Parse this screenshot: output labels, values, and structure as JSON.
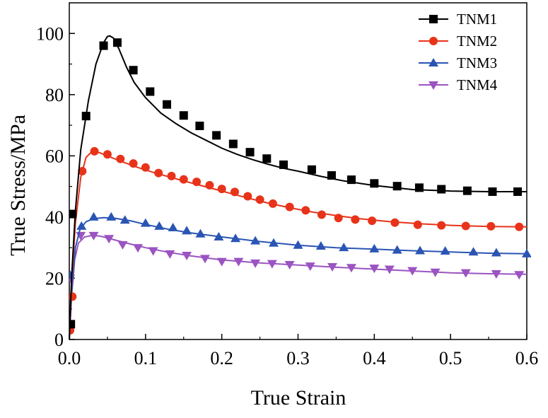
{
  "chart_data": {
    "type": "line",
    "title": "",
    "xlabel": "True Strain",
    "ylabel": "True Stress/MPa",
    "xlim": [
      0,
      0.6
    ],
    "ylim": [
      0,
      110
    ],
    "xticks": [
      0.0,
      0.1,
      0.2,
      0.3,
      0.4,
      0.5,
      0.6
    ],
    "xtick_labels": [
      "0.0",
      "0.1",
      "0.2",
      "0.3",
      "0.4",
      "0.5",
      "0.6"
    ],
    "yticks": [
      0,
      20,
      40,
      60,
      80,
      100
    ],
    "ytick_labels": [
      "0",
      "20",
      "40",
      "60",
      "80",
      "100"
    ],
    "grid": false,
    "legend_position": "top-right",
    "series": [
      {
        "name": "TNM1",
        "color": "#000000",
        "marker": "square",
        "x": [
          0,
          0.003,
          0.008,
          0.015,
          0.025,
          0.035,
          0.045,
          0.05,
          0.053,
          0.058,
          0.065,
          0.075,
          0.085,
          0.1,
          0.12,
          0.14,
          0.16,
          0.18,
          0.2,
          0.22,
          0.24,
          0.26,
          0.28,
          0.3,
          0.33,
          0.36,
          0.4,
          0.45,
          0.5,
          0.55,
          0.6
        ],
        "y": [
          0,
          20,
          42,
          62,
          78,
          90,
          97,
          99,
          99.2,
          98.5,
          95,
          89,
          84,
          79,
          74,
          70.5,
          67.5,
          65,
          62.5,
          60.5,
          58.8,
          57.3,
          56,
          55,
          53.3,
          51.8,
          50.3,
          49,
          48.5,
          48.3,
          48.3
        ],
        "marker_x": [
          0.002,
          0.004,
          0.022,
          0.045,
          0.063,
          0.084,
          0.106,
          0.128,
          0.15,
          0.171,
          0.193,
          0.215,
          0.237,
          0.259,
          0.281,
          0.318,
          0.344,
          0.37,
          0.4,
          0.43,
          0.459,
          0.488,
          0.522,
          0.555,
          0.588
        ],
        "marker_y": [
          5,
          41,
          73,
          96,
          97,
          88,
          81,
          76.8,
          73.2,
          69.8,
          66.7,
          63.9,
          61.2,
          59.1,
          57.1,
          55.5,
          53.6,
          52.2,
          51,
          50.1,
          49.6,
          49.1,
          48.6,
          48.3,
          48.3
        ]
      },
      {
        "name": "TNM2",
        "color": "#e8331a",
        "marker": "circle",
        "x": [
          0,
          0.003,
          0.008,
          0.015,
          0.022,
          0.03,
          0.04,
          0.05,
          0.07,
          0.09,
          0.11,
          0.13,
          0.15,
          0.17,
          0.2,
          0.23,
          0.26,
          0.29,
          0.32,
          0.35,
          0.38,
          0.42,
          0.46,
          0.5,
          0.55,
          0.6
        ],
        "y": [
          0,
          18,
          38,
          53,
          59.5,
          61.5,
          61,
          60,
          58,
          56.2,
          54.6,
          53.2,
          51.8,
          50.5,
          48.5,
          46.5,
          44.6,
          43,
          41.6,
          40.5,
          39.5,
          38.5,
          37.8,
          37.3,
          36.9,
          36.8
        ],
        "marker_x": [
          0.001,
          0.004,
          0.017,
          0.033,
          0.05,
          0.067,
          0.084,
          0.1,
          0.117,
          0.134,
          0.15,
          0.167,
          0.184,
          0.2,
          0.217,
          0.234,
          0.25,
          0.267,
          0.289,
          0.31,
          0.331,
          0.353,
          0.375,
          0.397,
          0.427,
          0.457,
          0.488,
          0.52,
          0.553,
          0.59
        ],
        "marker_y": [
          3,
          14,
          55,
          61.5,
          60.5,
          59,
          57.5,
          56.2,
          54.4,
          53.4,
          52.3,
          51.5,
          50.4,
          49.2,
          48.2,
          46.8,
          45.7,
          44.4,
          43.3,
          42.2,
          40.8,
          39.7,
          39.2,
          38.8,
          38.2,
          37.5,
          37.3,
          37.1,
          37,
          36.8
        ]
      },
      {
        "name": "TNM3",
        "color": "#2a55b4",
        "marker": "triangle-up",
        "x": [
          0,
          0.003,
          0.008,
          0.014,
          0.022,
          0.032,
          0.045,
          0.06,
          0.08,
          0.1,
          0.13,
          0.16,
          0.2,
          0.25,
          0.3,
          0.35,
          0.4,
          0.45,
          0.5,
          0.55,
          0.6
        ],
        "y": [
          0,
          15,
          30,
          36,
          38.5,
          39.5,
          39.8,
          39.6,
          38.8,
          37.6,
          36,
          34.8,
          33.5,
          32,
          30.8,
          30,
          29.5,
          29,
          28.6,
          28.2,
          28
        ],
        "marker_x": [
          0.001,
          0.016,
          0.032,
          0.055,
          0.073,
          0.1,
          0.118,
          0.136,
          0.154,
          0.172,
          0.196,
          0.218,
          0.244,
          0.268,
          0.3,
          0.33,
          0.36,
          0.4,
          0.43,
          0.46,
          0.493,
          0.53,
          0.56,
          0.6
        ],
        "marker_y": [
          21,
          37,
          40,
          40,
          39,
          38,
          37,
          36.5,
          35.5,
          34.5,
          33.5,
          33,
          32.2,
          31.5,
          30.8,
          30.5,
          30,
          29.6,
          29.2,
          29,
          28.9,
          28.6,
          28.3,
          28
        ]
      },
      {
        "name": "TNM4",
        "color": "#9b54c2",
        "marker": "triangle-down",
        "x": [
          0,
          0.003,
          0.007,
          0.012,
          0.02,
          0.03,
          0.04,
          0.06,
          0.08,
          0.1,
          0.13,
          0.16,
          0.2,
          0.25,
          0.3,
          0.35,
          0.4,
          0.45,
          0.5,
          0.55,
          0.6
        ],
        "y": [
          0,
          14,
          26,
          31.5,
          33.5,
          34,
          33.8,
          32.5,
          31.2,
          30,
          28.5,
          27.3,
          26,
          25,
          24.3,
          23.6,
          23,
          22.4,
          21.8,
          21.5,
          21.3
        ],
        "marker_x": [
          0.001,
          0.015,
          0.032,
          0.052,
          0.07,
          0.09,
          0.11,
          0.132,
          0.154,
          0.178,
          0.2,
          0.222,
          0.244,
          0.266,
          0.289,
          0.316,
          0.345,
          0.37,
          0.4,
          0.42,
          0.45,
          0.48,
          0.52,
          0.56,
          0.59
        ],
        "marker_y": [
          20,
          34,
          34,
          33,
          31,
          30,
          29,
          28,
          27.5,
          26.5,
          25.5,
          25.5,
          25,
          24.8,
          24.5,
          24,
          23.8,
          23.5,
          23.3,
          23,
          22.5,
          22,
          21.8,
          21.5,
          21.2
        ]
      }
    ]
  }
}
